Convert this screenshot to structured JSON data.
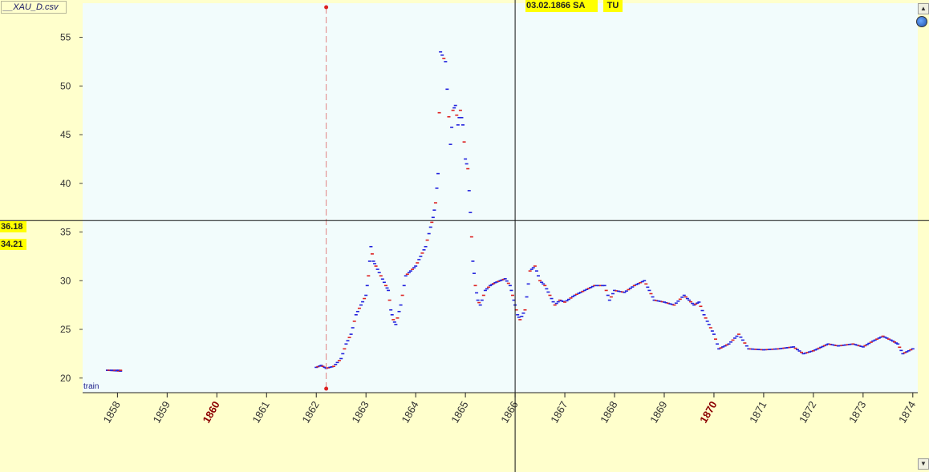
{
  "window": {
    "file_tab": "__XAU_D.csv"
  },
  "cursor": {
    "date": "03.02.1866 SA",
    "day_code": "TU"
  },
  "y_readouts": {
    "upper": "36.18",
    "lower": "34.21"
  },
  "dataset_label": "train",
  "chart_data": {
    "type": "line",
    "title": "",
    "xlabel": "",
    "ylabel": "",
    "xlim": [
      1857.3,
      1874.1
    ],
    "ylim": [
      18.5,
      58.5
    ],
    "grid": false,
    "x_ticks": [
      "1858",
      "1859",
      "1860",
      "1861",
      "1862",
      "1863",
      "1864",
      "1865",
      "1866",
      "1867",
      "1868",
      "1869",
      "1870",
      "1871",
      "1872",
      "1873",
      "1874"
    ],
    "highlighted_ticks": [
      "1860",
      "1870"
    ],
    "y_ticks": [
      20,
      25,
      30,
      35,
      40,
      45,
      50,
      55
    ],
    "marker_line_x": 1862.2,
    "cursor_x": 1866.0,
    "cursor_y": 36.18,
    "series": [
      {
        "x": [
          1857.8,
          1858.1,
          1862.0,
          1862.1,
          1862.2,
          1862.35,
          1862.5,
          1862.6,
          1862.7,
          1862.8,
          1862.9,
          1863.0,
          1863.05,
          1863.1,
          1863.15,
          1863.2,
          1863.3,
          1863.4,
          1863.45,
          1863.5,
          1863.55,
          1863.6,
          1863.7,
          1863.8,
          1863.9,
          1864.0,
          1864.1,
          1864.2,
          1864.3,
          1864.35,
          1864.4,
          1864.45,
          1864.5,
          1864.6,
          1864.7,
          1864.75,
          1864.8,
          1864.85,
          1864.9,
          1864.95,
          1865.0,
          1865.05,
          1865.1,
          1865.15,
          1865.2,
          1865.25,
          1865.3,
          1865.4,
          1865.5,
          1865.6,
          1865.7,
          1865.8,
          1865.9,
          1865.95,
          1866.0,
          1866.05,
          1866.1,
          1866.2,
          1866.3,
          1866.4,
          1866.5,
          1866.6,
          1866.7,
          1866.8,
          1866.9,
          1867.0,
          1867.2,
          1867.4,
          1867.6,
          1867.8,
          1867.9,
          1868.0,
          1868.2,
          1868.4,
          1868.6,
          1868.7,
          1868.8,
          1869.0,
          1869.2,
          1869.4,
          1869.5,
          1869.6,
          1869.7,
          1869.8,
          1869.9,
          1870.0,
          1870.1,
          1870.3,
          1870.5,
          1870.7,
          1871.0,
          1871.3,
          1871.6,
          1871.8,
          1872.0,
          1872.3,
          1872.5,
          1872.8,
          1873.0,
          1873.2,
          1873.4,
          1873.6,
          1873.7,
          1873.8,
          1874.0
        ],
        "y": [
          20.8,
          20.7,
          21.1,
          21.3,
          21.0,
          21.2,
          22.0,
          23.5,
          24.5,
          26.5,
          27.5,
          28.5,
          30.5,
          33.5,
          32.0,
          31.5,
          30.5,
          29.5,
          29.0,
          27.0,
          26.0,
          25.5,
          27.5,
          30.5,
          31.0,
          31.5,
          32.5,
          33.5,
          35.5,
          36.5,
          38.0,
          41.0,
          53.5,
          52.5,
          44.0,
          47.5,
          48.0,
          46.0,
          47.5,
          46.0,
          42.5,
          41.5,
          37.0,
          32.0,
          29.5,
          28.0,
          27.5,
          29.0,
          29.5,
          29.8,
          30.0,
          30.2,
          29.5,
          28.5,
          27.5,
          26.5,
          26.0,
          27.0,
          31.0,
          31.5,
          30.0,
          29.5,
          28.5,
          27.5,
          28.0,
          27.8,
          28.5,
          29.0,
          29.5,
          29.5,
          28.0,
          29.0,
          28.8,
          29.5,
          30.0,
          29.0,
          28.0,
          27.8,
          27.5,
          28.5,
          28.0,
          27.5,
          27.8,
          26.5,
          25.5,
          24.5,
          23.0,
          23.5,
          24.5,
          23.0,
          22.9,
          23.0,
          23.2,
          22.5,
          22.8,
          23.5,
          23.3,
          23.5,
          23.2,
          23.8,
          24.3,
          23.8,
          23.5,
          22.5,
          23.0
        ],
        "color": "#2222dd",
        "tick_color": "#dd2222"
      }
    ]
  }
}
